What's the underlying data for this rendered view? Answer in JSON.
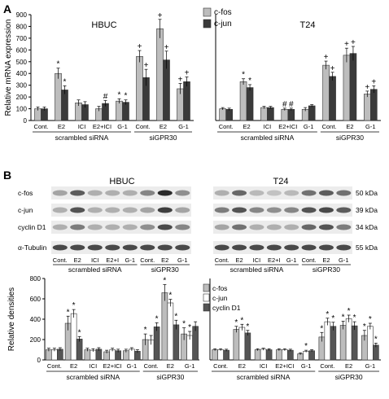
{
  "panels": {
    "a_label": "A",
    "b_label": "B"
  },
  "colors": {
    "cfos": "#bdbdbd",
    "cjun": "#3a3a3a",
    "cjun_white": "#ffffff",
    "cyclin": "#555555",
    "blot_bg": "#ececec",
    "band": "#202020"
  },
  "chart_data": [
    {
      "id": "A-HBUC",
      "type": "bar",
      "title": "HBUC",
      "ylabel": "Relative mRNA expression",
      "ylim": [
        0,
        900
      ],
      "yticks": [
        0,
        100,
        200,
        300,
        400,
        500,
        600,
        700,
        800,
        900
      ],
      "grid": false,
      "legend_position": "top-right",
      "categories": [
        "Cont.",
        "E2",
        "ICI",
        "E2+ICI",
        "G-1",
        "Cont.",
        "E2",
        "G-1"
      ],
      "groups": [
        {
          "label": "scrambled siRNA",
          "from": 0,
          "to": 4
        },
        {
          "label": "siGPR30",
          "from": 5,
          "to": 7
        }
      ],
      "series": [
        {
          "name": "c-fos",
          "values": [
            100,
            400,
            150,
            100,
            165,
            545,
            780,
            270
          ],
          "errors": [
            15,
            45,
            25,
            20,
            20,
            50,
            80,
            45
          ],
          "marks": [
            "",
            "*",
            "",
            "",
            "*",
            "+",
            "+",
            "+"
          ]
        },
        {
          "name": "c-jun",
          "values": [
            100,
            260,
            135,
            145,
            155,
            365,
            515,
            330
          ],
          "errors": [
            15,
            35,
            25,
            25,
            20,
            70,
            75,
            40
          ],
          "marks": [
            "",
            "*",
            "",
            "#",
            "*",
            "+",
            "+",
            "+"
          ]
        }
      ]
    },
    {
      "id": "A-T24",
      "type": "bar",
      "title": "T24",
      "ylim": [
        0,
        900
      ],
      "grid": false,
      "categories": [
        "Cont.",
        "E2",
        "ICI",
        "E2+ICI",
        "G-1",
        "Cont.",
        "E2",
        "G-1"
      ],
      "groups": [
        {
          "label": "scrambled siRNA",
          "from": 0,
          "to": 4
        },
        {
          "label": "siGPR30",
          "from": 5,
          "to": 7
        }
      ],
      "series": [
        {
          "name": "c-fos",
          "values": [
            100,
            330,
            110,
            95,
            95,
            470,
            555,
            225
          ],
          "errors": [
            10,
            25,
            10,
            10,
            15,
            35,
            60,
            25
          ],
          "marks": [
            "",
            "*",
            "",
            "#",
            "",
            "+",
            "+",
            "+"
          ]
        },
        {
          "name": "c-jun",
          "values": [
            95,
            280,
            110,
            95,
            125,
            375,
            570,
            265
          ],
          "errors": [
            10,
            25,
            10,
            10,
            10,
            35,
            60,
            30
          ],
          "marks": [
            "",
            "*",
            "",
            "#",
            "",
            "+",
            "+",
            "+"
          ]
        }
      ]
    },
    {
      "id": "B-HBUC",
      "type": "bar",
      "ylabel": "Relative densities",
      "ylim": [
        0,
        800
      ],
      "yticks": [
        0,
        200,
        400,
        600,
        800
      ],
      "grid": false,
      "legend_position": "right",
      "categories": [
        "Cont.",
        "E2",
        "ICI",
        "E2+ICI",
        "G-1",
        "Cont.",
        "E2",
        "G-1"
      ],
      "groups": [
        {
          "label": "scrambled siRNA",
          "from": 0,
          "to": 4
        },
        {
          "label": "siGPR30",
          "from": 5,
          "to": 7
        }
      ],
      "series": [
        {
          "name": "c-fos",
          "values": [
            100,
            360,
            100,
            80,
            90,
            200,
            660,
            255
          ],
          "errors": [
            15,
            70,
            15,
            15,
            15,
            55,
            80,
            60
          ],
          "marks": [
            "",
            "*",
            "",
            "",
            "",
            "*",
            "*",
            "*"
          ]
        },
        {
          "name": "c-jun",
          "values": [
            100,
            455,
            95,
            100,
            105,
            195,
            560,
            240
          ],
          "errors": [
            15,
            40,
            15,
            15,
            15,
            45,
            35,
            40
          ],
          "marks": [
            "",
            "*",
            "",
            "",
            "",
            "",
            "*",
            "*"
          ]
        },
        {
          "name": "cyclin D1",
          "values": [
            105,
            205,
            105,
            90,
            85,
            325,
            345,
            330
          ],
          "errors": [
            15,
            25,
            15,
            15,
            15,
            40,
            45,
            45
          ],
          "marks": [
            "",
            "*",
            "",
            "",
            "",
            "*",
            "*",
            ""
          ]
        }
      ]
    },
    {
      "id": "B-T24",
      "type": "bar",
      "ylim": [
        0,
        800
      ],
      "grid": false,
      "categories": [
        "Cont.",
        "E2",
        "ICI",
        "E2+ICI",
        "G-1",
        "Cont.",
        "E2",
        "G-1"
      ],
      "groups": [
        {
          "label": "scrambled siRNA",
          "from": 0,
          "to": 4
        },
        {
          "label": "siGPR30",
          "from": 5,
          "to": 7
        }
      ],
      "series": [
        {
          "name": "c-fos",
          "values": [
            100,
            300,
            100,
            100,
            60,
            225,
            340,
            240
          ],
          "errors": [
            10,
            30,
            10,
            10,
            10,
            45,
            40,
            50
          ],
          "marks": [
            "",
            "*",
            "",
            "",
            "",
            "*",
            "*",
            "*"
          ]
        },
        {
          "name": "c-jun",
          "values": [
            100,
            320,
            105,
            100,
            85,
            375,
            405,
            330
          ],
          "errors": [
            10,
            30,
            10,
            10,
            10,
            35,
            35,
            30
          ],
          "marks": [
            "",
            "*",
            "",
            "",
            "*",
            "*",
            "*",
            "*"
          ]
        },
        {
          "name": "cyclin D1",
          "values": [
            95,
            265,
            100,
            95,
            90,
            330,
            335,
            145
          ],
          "errors": [
            10,
            25,
            10,
            10,
            10,
            40,
            40,
            20
          ],
          "marks": [
            "",
            "*",
            "",
            "",
            "",
            "*",
            "*",
            "*"
          ]
        }
      ]
    }
  ],
  "blots": [
    {
      "id": "blot-HBUC",
      "title": "HBUC",
      "rows": [
        {
          "label": "c-fos",
          "intensity": [
            0.35,
            0.7,
            0.3,
            0.3,
            0.3,
            0.5,
            0.95,
            0.45
          ]
        },
        {
          "label": "c-jun",
          "intensity": [
            0.3,
            0.75,
            0.3,
            0.3,
            0.3,
            0.35,
            0.85,
            0.35
          ]
        },
        {
          "label": "cyclin D1",
          "intensity": [
            0.3,
            0.55,
            0.3,
            0.3,
            0.3,
            0.45,
            0.8,
            0.5
          ]
        },
        {
          "label": "α-Tubulin",
          "intensity": [
            0.8,
            0.8,
            0.8,
            0.8,
            0.8,
            0.8,
            0.8,
            0.8
          ]
        }
      ],
      "lanes": [
        "Cont.",
        "E2",
        "ICI",
        "E2+I",
        "G-1",
        "Cont.",
        "E2",
        "G-1"
      ],
      "groups": [
        {
          "label": "scrambled siRNA",
          "from": 0,
          "to": 4
        },
        {
          "label": "siGPR30",
          "from": 5,
          "to": 7
        }
      ]
    },
    {
      "id": "blot-T24",
      "title": "T24",
      "rows": [
        {
          "label": "50 kDa",
          "intensity": [
            0.3,
            0.65,
            0.25,
            0.2,
            0.25,
            0.6,
            0.7,
            0.6
          ]
        },
        {
          "label": "39 kDa",
          "intensity": [
            0.55,
            0.75,
            0.5,
            0.45,
            0.5,
            0.75,
            0.8,
            0.7
          ]
        },
        {
          "label": "34 kDa",
          "intensity": [
            0.35,
            0.6,
            0.3,
            0.3,
            0.3,
            0.65,
            0.75,
            0.55
          ]
        },
        {
          "label": "55 kDa",
          "intensity": [
            0.8,
            0.8,
            0.8,
            0.8,
            0.8,
            0.8,
            0.8,
            0.8
          ]
        }
      ],
      "lanes": [
        "Cont.",
        "E2",
        "ICI",
        "E2+I",
        "G-1",
        "Cont.",
        "E2",
        "G-1"
      ],
      "groups": [
        {
          "label": "scrambled siRNA",
          "from": 0,
          "to": 4
        },
        {
          "label": "siGPR30",
          "from": 5,
          "to": 7
        }
      ]
    }
  ]
}
